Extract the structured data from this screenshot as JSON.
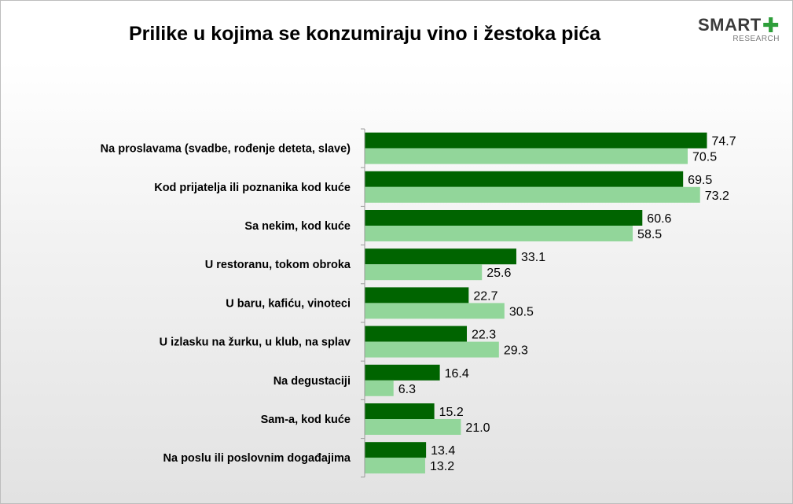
{
  "header": {
    "logo_main": "SMART",
    "logo_sub": "RESEARCH"
  },
  "colors": {
    "series_1": "#006400",
    "series_2": "#92d69a",
    "logo_accent": "#2e9e3a"
  },
  "chart_data": {
    "type": "bar",
    "orientation": "horizontal",
    "title": "Prilike u kojima se konzumiraju vino i žestoka pića",
    "categories": [
      "Na proslavama (svadbe, rođenje deteta, slave)",
      "Kod prijatelja ili poznanika kod kuće",
      "Sa nekim, kod kuće",
      "U restoranu, tokom obroka",
      "U baru, kafiću, vinoteci",
      "U izlasku na žurku, u klub, na splav",
      "Na degustaciji",
      "Sam-a, kod kuće",
      "Na poslu ili poslovnim događajima"
    ],
    "series": [
      {
        "values": [
          74.7,
          69.5,
          60.6,
          33.1,
          22.7,
          22.3,
          16.4,
          15.2,
          13.4
        ],
        "labels": [
          "74.7",
          "69.5",
          "60.6",
          "33.1",
          "22.7",
          "22.3",
          "16.4",
          "15.2",
          "13.4"
        ]
      },
      {
        "values": [
          70.5,
          73.2,
          58.5,
          25.6,
          30.5,
          29.3,
          6.3,
          21.0,
          13.2
        ],
        "labels": [
          "70.5",
          "73.2",
          "58.5",
          "25.6",
          "30.5",
          "29.3",
          "6.3",
          "21.0",
          "13.2"
        ]
      }
    ],
    "xlim": [
      0,
      100
    ],
    "grid": false,
    "legend": "none"
  }
}
